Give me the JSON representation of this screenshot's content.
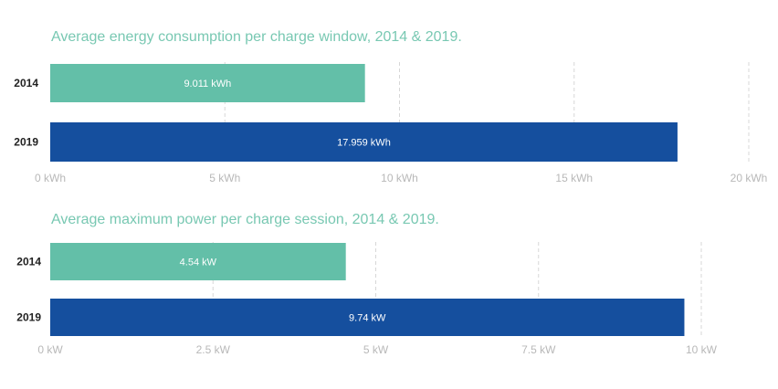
{
  "colors": {
    "title": "#78c8b2",
    "bar_2014": "#63bfa8",
    "bar_2019": "#154f9e",
    "grid": "#d7d7d7",
    "tick_text": "#b8b8b8",
    "category_text": "#222222",
    "data_label_text": "#ffffff"
  },
  "chart_data": [
    {
      "type": "bar",
      "orientation": "horizontal",
      "title": "Average energy consumption per charge window, 2014 & 2019.",
      "categories": [
        "2014",
        "2019"
      ],
      "values": [
        9.011,
        17.959
      ],
      "data_labels": [
        "9.011 kWh",
        "17.959 kWh"
      ],
      "bar_colors": [
        "#63bfa8",
        "#154f9e"
      ],
      "xlim": [
        0,
        20
      ],
      "ticks": [
        0,
        5,
        10,
        15,
        20
      ],
      "tick_labels": [
        "0 kWh",
        "5 kWh",
        "10 kWh",
        "15 kWh",
        "20 kWh"
      ],
      "grid": true
    },
    {
      "type": "bar",
      "orientation": "horizontal",
      "title": "Average maximum power per charge session, 2014 & 2019.",
      "categories": [
        "2014",
        "2019"
      ],
      "values": [
        4.54,
        9.74
      ],
      "data_labels": [
        "4.54 kW",
        "9.74 kW"
      ],
      "bar_colors": [
        "#63bfa8",
        "#154f9e"
      ],
      "xlim": [
        0,
        10
      ],
      "ticks": [
        0,
        2.5,
        5,
        7.5,
        10
      ],
      "tick_labels": [
        "0 kW",
        "2.5 kW",
        "5 kW",
        "7.5 kW",
        "10 kW"
      ],
      "grid": true
    }
  ]
}
